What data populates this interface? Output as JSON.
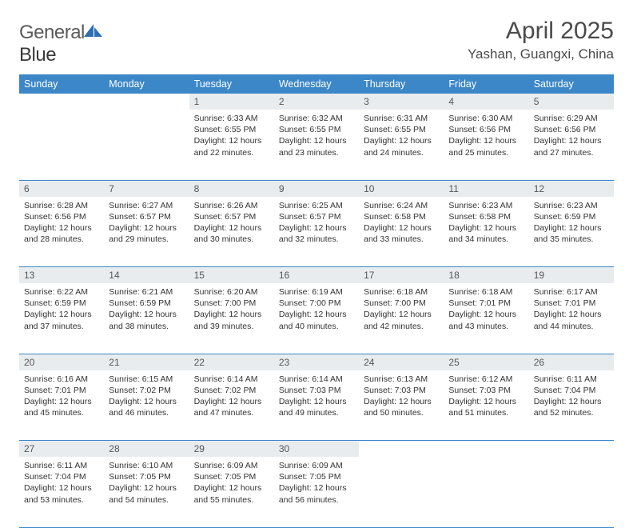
{
  "brand": {
    "part1": "General",
    "part2": "Blue"
  },
  "title": "April 2025",
  "location": "Yashan, Guangxi, China",
  "colors": {
    "header_bg": "#3b87c8",
    "header_text": "#ffffff",
    "daynum_bg": "#e9ecef",
    "daynum_text": "#555555",
    "body_text": "#333333",
    "rule": "#3b87c8",
    "page_bg": "#ffffff",
    "logo_blue": "#2f6fb0"
  },
  "day_headers": [
    "Sunday",
    "Monday",
    "Tuesday",
    "Wednesday",
    "Thursday",
    "Friday",
    "Saturday"
  ],
  "weeks": [
    [
      null,
      null,
      {
        "n": "1",
        "sr": "6:33 AM",
        "ss": "6:55 PM",
        "dl": "12 hours and 22 minutes."
      },
      {
        "n": "2",
        "sr": "6:32 AM",
        "ss": "6:55 PM",
        "dl": "12 hours and 23 minutes."
      },
      {
        "n": "3",
        "sr": "6:31 AM",
        "ss": "6:55 PM",
        "dl": "12 hours and 24 minutes."
      },
      {
        "n": "4",
        "sr": "6:30 AM",
        "ss": "6:56 PM",
        "dl": "12 hours and 25 minutes."
      },
      {
        "n": "5",
        "sr": "6:29 AM",
        "ss": "6:56 PM",
        "dl": "12 hours and 27 minutes."
      }
    ],
    [
      {
        "n": "6",
        "sr": "6:28 AM",
        "ss": "6:56 PM",
        "dl": "12 hours and 28 minutes."
      },
      {
        "n": "7",
        "sr": "6:27 AM",
        "ss": "6:57 PM",
        "dl": "12 hours and 29 minutes."
      },
      {
        "n": "8",
        "sr": "6:26 AM",
        "ss": "6:57 PM",
        "dl": "12 hours and 30 minutes."
      },
      {
        "n": "9",
        "sr": "6:25 AM",
        "ss": "6:57 PM",
        "dl": "12 hours and 32 minutes."
      },
      {
        "n": "10",
        "sr": "6:24 AM",
        "ss": "6:58 PM",
        "dl": "12 hours and 33 minutes."
      },
      {
        "n": "11",
        "sr": "6:23 AM",
        "ss": "6:58 PM",
        "dl": "12 hours and 34 minutes."
      },
      {
        "n": "12",
        "sr": "6:23 AM",
        "ss": "6:59 PM",
        "dl": "12 hours and 35 minutes."
      }
    ],
    [
      {
        "n": "13",
        "sr": "6:22 AM",
        "ss": "6:59 PM",
        "dl": "12 hours and 37 minutes."
      },
      {
        "n": "14",
        "sr": "6:21 AM",
        "ss": "6:59 PM",
        "dl": "12 hours and 38 minutes."
      },
      {
        "n": "15",
        "sr": "6:20 AM",
        "ss": "7:00 PM",
        "dl": "12 hours and 39 minutes."
      },
      {
        "n": "16",
        "sr": "6:19 AM",
        "ss": "7:00 PM",
        "dl": "12 hours and 40 minutes."
      },
      {
        "n": "17",
        "sr": "6:18 AM",
        "ss": "7:00 PM",
        "dl": "12 hours and 42 minutes."
      },
      {
        "n": "18",
        "sr": "6:18 AM",
        "ss": "7:01 PM",
        "dl": "12 hours and 43 minutes."
      },
      {
        "n": "19",
        "sr": "6:17 AM",
        "ss": "7:01 PM",
        "dl": "12 hours and 44 minutes."
      }
    ],
    [
      {
        "n": "20",
        "sr": "6:16 AM",
        "ss": "7:01 PM",
        "dl": "12 hours and 45 minutes."
      },
      {
        "n": "21",
        "sr": "6:15 AM",
        "ss": "7:02 PM",
        "dl": "12 hours and 46 minutes."
      },
      {
        "n": "22",
        "sr": "6:14 AM",
        "ss": "7:02 PM",
        "dl": "12 hours and 47 minutes."
      },
      {
        "n": "23",
        "sr": "6:14 AM",
        "ss": "7:03 PM",
        "dl": "12 hours and 49 minutes."
      },
      {
        "n": "24",
        "sr": "6:13 AM",
        "ss": "7:03 PM",
        "dl": "12 hours and 50 minutes."
      },
      {
        "n": "25",
        "sr": "6:12 AM",
        "ss": "7:03 PM",
        "dl": "12 hours and 51 minutes."
      },
      {
        "n": "26",
        "sr": "6:11 AM",
        "ss": "7:04 PM",
        "dl": "12 hours and 52 minutes."
      }
    ],
    [
      {
        "n": "27",
        "sr": "6:11 AM",
        "ss": "7:04 PM",
        "dl": "12 hours and 53 minutes."
      },
      {
        "n": "28",
        "sr": "6:10 AM",
        "ss": "7:05 PM",
        "dl": "12 hours and 54 minutes."
      },
      {
        "n": "29",
        "sr": "6:09 AM",
        "ss": "7:05 PM",
        "dl": "12 hours and 55 minutes."
      },
      {
        "n": "30",
        "sr": "6:09 AM",
        "ss": "7:05 PM",
        "dl": "12 hours and 56 minutes."
      },
      null,
      null,
      null
    ]
  ],
  "labels": {
    "sunrise": "Sunrise:",
    "sunset": "Sunset:",
    "daylight": "Daylight:"
  }
}
